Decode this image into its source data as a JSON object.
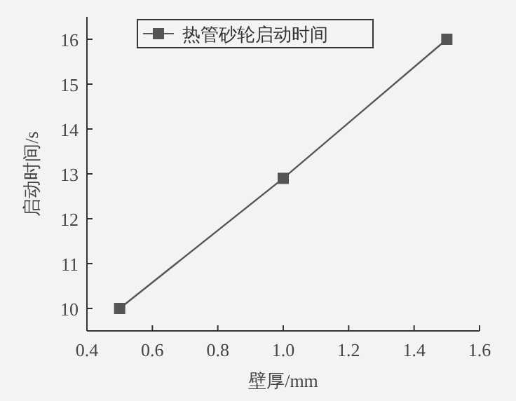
{
  "chart_data": {
    "type": "line",
    "xlabel": "壁厚/mm",
    "ylabel": "启动时间/s",
    "x": [
      0.5,
      1.0,
      1.5
    ],
    "series": [
      {
        "name": "热管砂轮启动时间",
        "color": "#555555",
        "values": [
          10,
          12.9,
          16
        ]
      }
    ],
    "xlim": [
      0.4,
      1.6
    ],
    "xticks": [
      0.4,
      0.6,
      0.8,
      {
        "value": 1.0,
        "label": "1.0"
      },
      1.2,
      1.4,
      1.6
    ],
    "ylim": [
      9.5,
      16.5
    ],
    "yticks": [
      10,
      11,
      12,
      13,
      14,
      15,
      16
    ],
    "grid": false,
    "legend": "top left",
    "marker": "square",
    "line_style": "solid"
  }
}
